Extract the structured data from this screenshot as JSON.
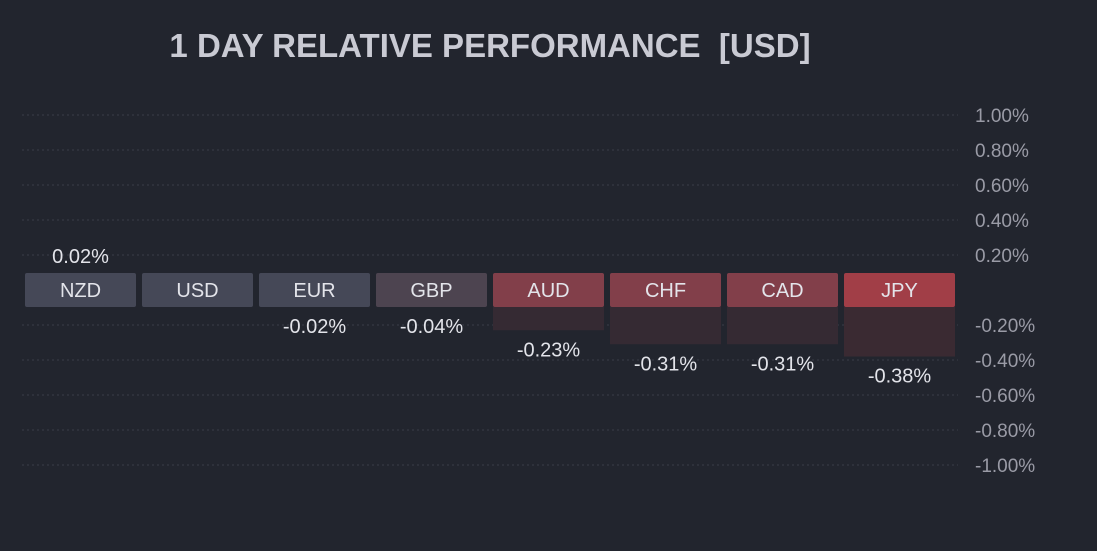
{
  "chart_data": {
    "type": "bar",
    "title": "1 DAY RELATIVE PERFORMANCE  [USD]",
    "categories": [
      "NZD",
      "USD",
      "EUR",
      "GBP",
      "AUD",
      "CHF",
      "CAD",
      "JPY"
    ],
    "values": [
      0.02,
      0.0,
      -0.02,
      -0.04,
      -0.23,
      -0.31,
      -0.31,
      -0.38
    ],
    "value_labels": [
      "0.02%",
      "",
      "-0.02%",
      "-0.04%",
      "-0.23%",
      "-0.31%",
      "-0.31%",
      "-0.38%"
    ],
    "label_colors": [
      "#454857",
      "#454857",
      "#454857",
      "#4d4450",
      "#823f4a",
      "#823f4a",
      "#823f4a",
      "#a13e47"
    ],
    "bar_colors": [
      "#2f3139",
      "#2f3139",
      "#2f3139",
      "#312e38",
      "#352a33",
      "#352a33",
      "#352a33",
      "#3a2a32"
    ],
    "ylim": [
      -1.0,
      1.0
    ],
    "yticks": [
      1.0,
      0.8,
      0.6,
      0.4,
      0.2,
      -0.2,
      -0.4,
      -0.6,
      -0.8,
      -1.0
    ],
    "ytick_labels": [
      "1.00%",
      "0.80%",
      "0.60%",
      "0.40%",
      "0.20%",
      "-0.20%",
      "-0.40%",
      "-0.60%",
      "-0.80%",
      "-1.00%"
    ],
    "xlabel": "",
    "ylabel": "",
    "grid": true,
    "colors": {
      "background": "#22252e",
      "grid": "#3a3d48",
      "title": "#c9cad3",
      "text": "#e3e4ea",
      "tick": "#9a9ba6"
    }
  }
}
